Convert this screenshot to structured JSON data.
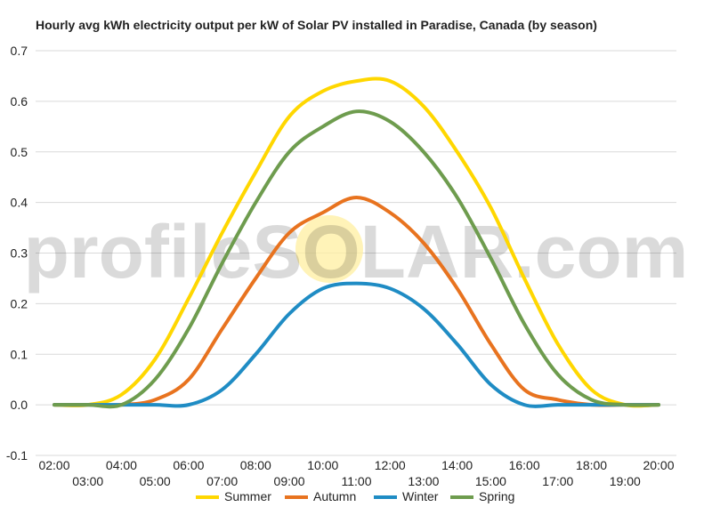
{
  "chart_data": {
    "type": "line",
    "title": "Hourly avg kWh electricity output per kW of Solar PV installed in Paradise, Canada (by season)",
    "xlabel": "",
    "ylabel": "",
    "x": [
      "02:00",
      "03:00",
      "04:00",
      "05:00",
      "06:00",
      "07:00",
      "08:00",
      "09:00",
      "10:00",
      "11:00",
      "12:00",
      "13:00",
      "14:00",
      "15:00",
      "16:00",
      "17:00",
      "18:00",
      "19:00",
      "20:00"
    ],
    "ylim": [
      -0.1,
      0.7
    ],
    "yticks": [
      -0.1,
      0.0,
      0.1,
      0.2,
      0.3,
      0.4,
      0.5,
      0.6,
      0.7
    ],
    "ytick_labels": [
      "-0.1",
      "0.0",
      "0.1",
      "0.2",
      "0.3",
      "0.4",
      "0.5",
      "0.6",
      "0.7"
    ],
    "grid": true,
    "legend_position": "bottom",
    "series": [
      {
        "name": "Summer",
        "color": "#FFD700",
        "values": [
          0.0,
          0.0,
          0.02,
          0.09,
          0.21,
          0.34,
          0.46,
          0.57,
          0.62,
          0.64,
          0.64,
          0.59,
          0.5,
          0.39,
          0.25,
          0.12,
          0.03,
          0.0,
          0.0
        ]
      },
      {
        "name": "Autumn",
        "color": "#E8731F",
        "values": [
          0.0,
          0.0,
          0.0,
          0.01,
          0.05,
          0.15,
          0.25,
          0.34,
          0.38,
          0.41,
          0.38,
          0.32,
          0.23,
          0.12,
          0.03,
          0.01,
          0.0,
          0.0,
          0.0
        ]
      },
      {
        "name": "Winter",
        "color": "#1F8CC4",
        "values": [
          0.0,
          0.0,
          0.0,
          0.0,
          0.0,
          0.03,
          0.1,
          0.18,
          0.23,
          0.24,
          0.23,
          0.19,
          0.12,
          0.04,
          0.0,
          0.0,
          0.0,
          0.0,
          0.0
        ]
      },
      {
        "name": "Spring",
        "color": "#6E9C4E",
        "values": [
          0.0,
          0.0,
          0.0,
          0.05,
          0.15,
          0.28,
          0.4,
          0.5,
          0.55,
          0.58,
          0.56,
          0.5,
          0.41,
          0.29,
          0.16,
          0.06,
          0.01,
          0.0,
          0.0
        ]
      }
    ]
  },
  "watermark": {
    "left": "profile",
    "middle": "SOLAR",
    "right": ".com",
    "sun_color": "#FFEFA0"
  }
}
